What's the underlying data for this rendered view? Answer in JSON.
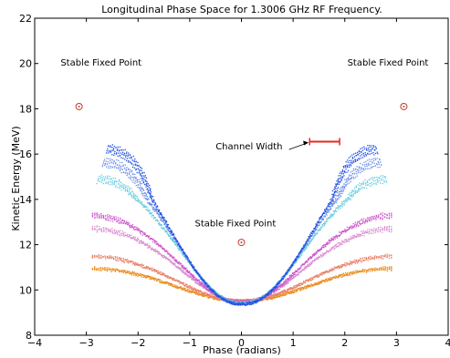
{
  "chart_data": {
    "type": "scatter",
    "title": "Longitudinal Phase Space for 1.3006 GHz RF Frequency.",
    "xlabel": "Phase (radians)",
    "ylabel": "Kinetic Energy (MeV)",
    "xlim": [
      -4,
      4
    ],
    "ylim": [
      8,
      22
    ],
    "xticks": [
      "−4",
      "−3",
      "−2",
      "−1",
      "0",
      "1",
      "2",
      "3",
      "4"
    ],
    "yticks": [
      "8",
      "10",
      "12",
      "14",
      "16",
      "18",
      "20",
      "22"
    ],
    "grid": false,
    "fixed_points": [
      {
        "x": -3.14159,
        "y": 18.1
      },
      {
        "x": 0.0,
        "y": 12.1
      },
      {
        "x": 3.14159,
        "y": 18.1
      }
    ],
    "annotations": [
      {
        "text": "Stable Fixed Point",
        "x": -3.5,
        "y": 19.9
      },
      {
        "text": "Stable Fixed Point",
        "x": -0.9,
        "y": 12.8
      },
      {
        "text": "Stable Fixed Point",
        "x": 2.05,
        "y": 19.9
      },
      {
        "text": "Channel Width",
        "x": -0.5,
        "y": 16.2
      }
    ],
    "channel_width": {
      "x1": 1.32,
      "x2": 1.9,
      "y": 16.55,
      "color": "#e8281e"
    },
    "series": [
      {
        "color": "#e98b1c",
        "y0": 9.55,
        "amp": 1.45,
        "spread": 0.35
      },
      {
        "color": "#e8836a",
        "y0": 9.55,
        "amp": 2.0,
        "spread": 0.4
      },
      {
        "color": "#d98fd0",
        "y0": 9.5,
        "amp": 3.3,
        "spread": 0.55
      },
      {
        "color": "#cc55cc",
        "y0": 9.5,
        "amp": 3.9,
        "spread": 0.5
      },
      {
        "color": "#66ccdd",
        "y0": 9.45,
        "amp": 5.6,
        "spread": 0.45
      },
      {
        "color": "#6a8ee8",
        "y0": 9.4,
        "amp": 6.4,
        "spread": 0.35
      },
      {
        "color": "#1f4fe0",
        "y0": 9.4,
        "amp": 7.0,
        "spread": 0.25
      }
    ]
  }
}
